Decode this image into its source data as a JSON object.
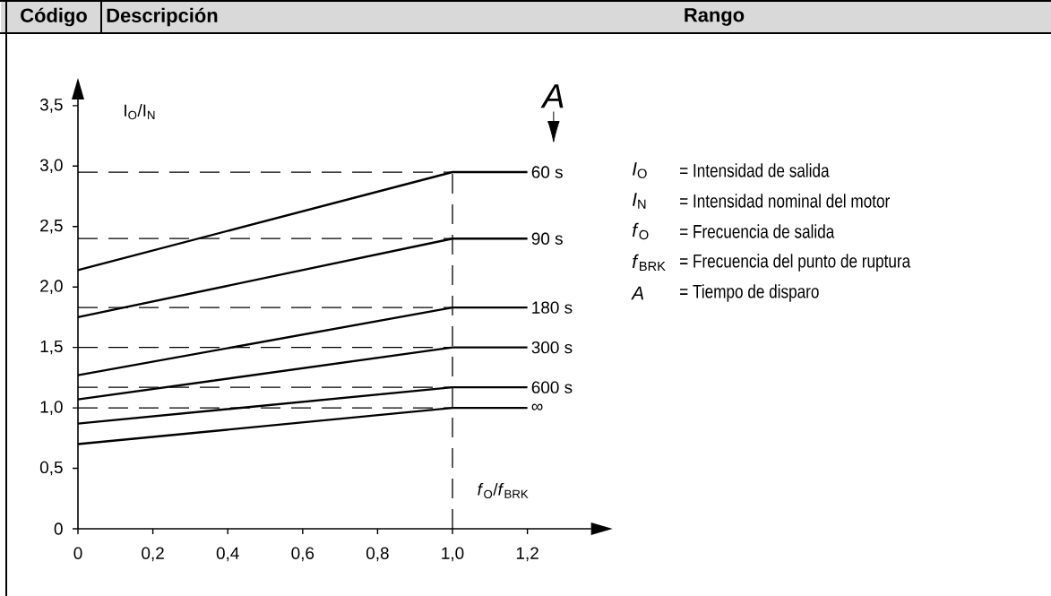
{
  "chart_data": {
    "type": "line",
    "xlabel": "*f*$_{O}$/*f*$_{BRK}$",
    "ylabel": "I$_{O}$/I$_{N}$",
    "x": [
      0,
      1.0,
      1.2
    ],
    "series": [
      {
        "name": "60 s",
        "color": "#000000",
        "values": [
          2.14,
          2.95,
          2.95
        ]
      },
      {
        "name": "90 s",
        "color": "#000000",
        "values": [
          1.75,
          2.4,
          2.4
        ]
      },
      {
        "name": "180 s",
        "color": "#000000",
        "values": [
          1.27,
          1.83,
          1.83
        ]
      },
      {
        "name": "300 s",
        "color": "#000000",
        "values": [
          1.07,
          1.5,
          1.5
        ]
      },
      {
        "name": "600 s",
        "color": "#000000",
        "values": [
          0.87,
          1.17,
          1.17
        ]
      },
      {
        "name": "∞",
        "color": "#000000",
        "values": [
          0.7,
          1.0,
          1.0
        ]
      }
    ],
    "xlim": [
      0,
      1.37
    ],
    "ylim": [
      0,
      3.55
    ],
    "xticks": [
      0,
      {
        "value": 0.2,
        "label": "0,2"
      },
      {
        "value": 0.4,
        "label": "0,4"
      },
      {
        "value": 0.6,
        "label": "0,6"
      },
      {
        "value": 0.8,
        "label": "0,8"
      },
      {
        "value": 1.0,
        "label": "1,0"
      },
      {
        "value": 1.2,
        "label": "1,2"
      }
    ],
    "yticks": [
      0,
      {
        "value": 0.5,
        "label": "0,5"
      },
      {
        "value": 1.0,
        "label": "1,0"
      },
      {
        "value": 1.5,
        "label": "1,5"
      },
      {
        "value": 2.0,
        "label": "2,0"
      },
      {
        "value": 2.5,
        "label": "2,5"
      },
      {
        "value": 3.0,
        "label": "3,0"
      },
      {
        "value": 3.5,
        "label": "3,5"
      }
    ],
    "ref_lines": [
      {
        "axis": "x",
        "value": 1.0,
        "line_style": "dashed"
      },
      {
        "axis": "y",
        "value": 2.95,
        "line_style": "dashed"
      },
      {
        "axis": "y",
        "value": 2.4,
        "line_style": "dashed"
      },
      {
        "axis": "y",
        "value": 1.83,
        "line_style": "dashed"
      },
      {
        "axis": "y",
        "value": 1.5,
        "line_style": "dashed"
      },
      {
        "axis": "y",
        "value": 1.17,
        "line_style": "dashed"
      },
      {
        "axis": "y",
        "value": 1.0,
        "line_style": "dashed"
      }
    ],
    "line_style": "solid",
    "marker": "none",
    "grid": false,
    "annotations": [
      "Código",
      "Descripción",
      "Rango",
      "*A*",
      "*I*$_{O}$",
      "= Intensidad de salida",
      "*I*$_{N}$",
      "= Intensidad nominal del motor",
      "*f*$_{O}$",
      "= Frecuencia de salida",
      "*f*$_{BRK}$",
      "= Frecuencia del punto de ruptura",
      "*A*",
      "= Tiempo de disparo"
    ]
  }
}
